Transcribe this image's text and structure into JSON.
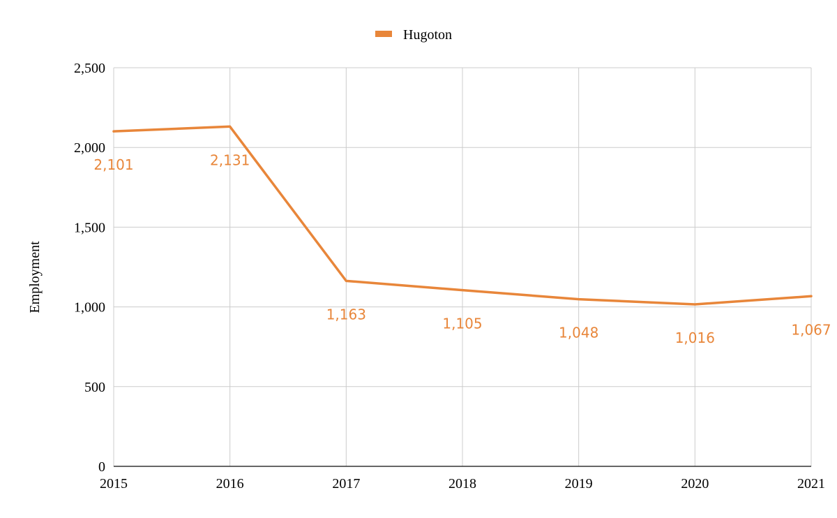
{
  "chart_data": {
    "type": "line",
    "title": "",
    "xlabel": "",
    "ylabel": "Employment",
    "x": [
      "2015",
      "2016",
      "2017",
      "2018",
      "2019",
      "2020",
      "2021"
    ],
    "ylim": [
      0,
      2500
    ],
    "yticks": [
      0,
      500,
      1000,
      1500,
      2000,
      2500
    ],
    "ytick_labels": [
      "0",
      "500",
      "1,000",
      "1,500",
      "2,000",
      "2,500"
    ],
    "grid": true,
    "legend_position": "top-center",
    "series": [
      {
        "name": "Hugoton",
        "color": "#e8863a",
        "values": [
          2101,
          2131,
          1163,
          1105,
          1048,
          1016,
          1067
        ],
        "labels": [
          "2,101",
          "2,131",
          "1,163",
          "1,105",
          "1,048",
          "1,016",
          "1,067"
        ]
      }
    ]
  }
}
